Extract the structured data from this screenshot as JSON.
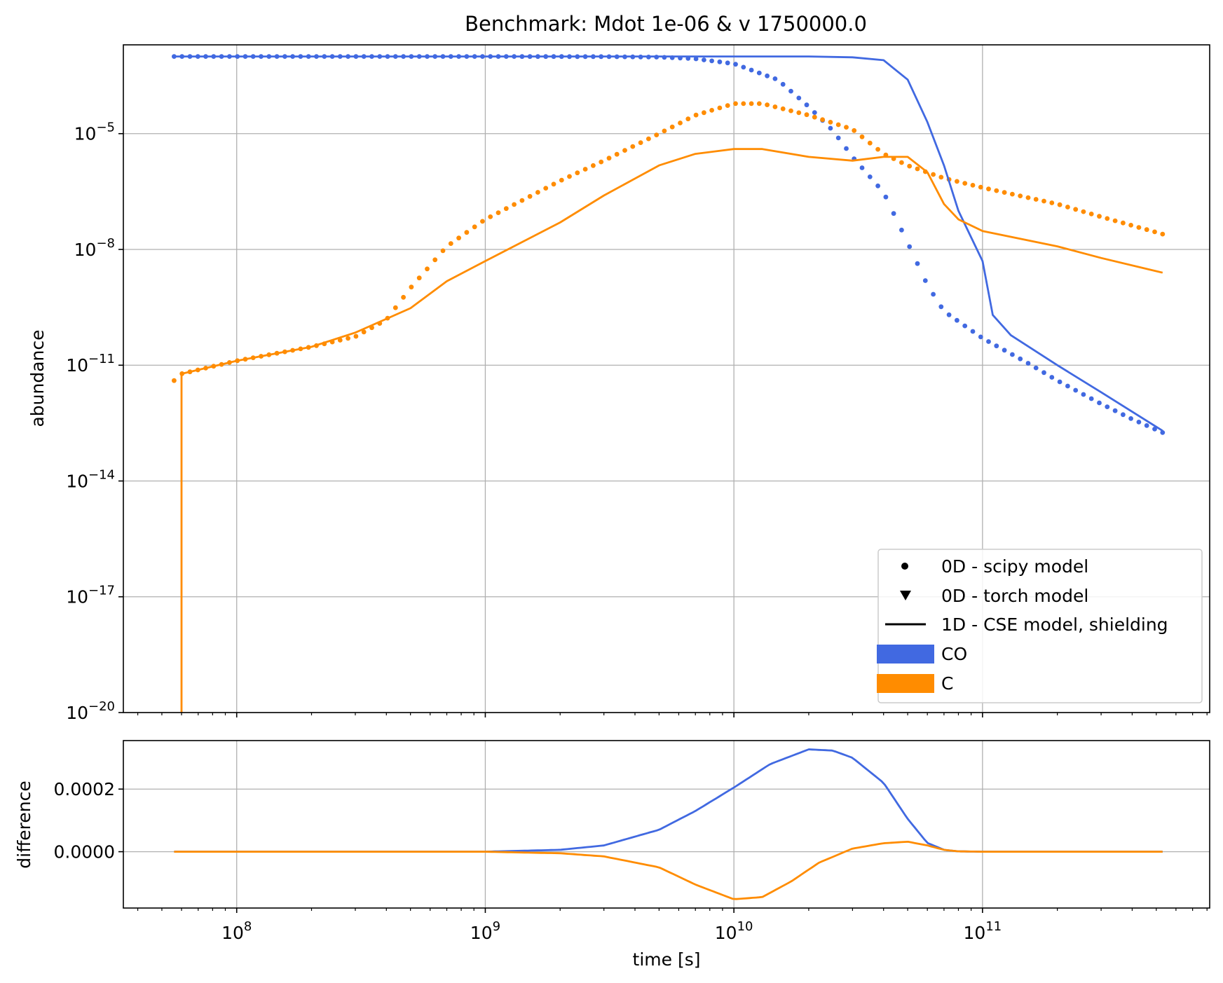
{
  "chart_data": [
    {
      "type": "line",
      "title": "Benchmark: Mdot 1e-06 & v 1750000.0",
      "xlabel": "",
      "ylabel": "abundance",
      "xscale": "log",
      "yscale": "log",
      "xlim": [
        35000000.0,
        820000000000.0
      ],
      "ylim": [
        1e-20,
        0.002
      ],
      "grid": true,
      "yticks": [
        {
          "mant": "10",
          "exp": "−20",
          "value": 1e-20
        },
        {
          "mant": "10",
          "exp": "−17",
          "value": 1e-17
        },
        {
          "mant": "10",
          "exp": "−14",
          "value": 1e-14
        },
        {
          "mant": "10",
          "exp": "−11",
          "value": 1e-11
        },
        {
          "mant": "10",
          "exp": "−8",
          "value": 1e-08
        },
        {
          "mant": "10",
          "exp": "−5",
          "value": 1e-05
        }
      ],
      "xtick_major": [
        100000000.0,
        1000000000.0,
        10000000000.0,
        100000000000.0
      ],
      "legend": {
        "position": "lower right",
        "entries": [
          {
            "label": "0D - scipy model",
            "marker": "dot"
          },
          {
            "label": "0D - torch model",
            "marker": "triangle-down"
          },
          {
            "label": "1D - CSE model, shielding",
            "marker": "line"
          },
          {
            "label": "CO",
            "marker": "patch",
            "color": "#4169E1"
          },
          {
            "label": "C",
            "marker": "patch",
            "color": "#FF8C00"
          }
        ]
      },
      "series": [
        {
          "name": "CO",
          "model": "0D - scipy model",
          "style": "dotted",
          "color": "#4169E1",
          "points": [
            [
              56000000.0,
              0.001
            ],
            [
              100000000.0,
              0.001
            ],
            [
              1000000000.0,
              0.001
            ],
            [
              3000000000.0,
              0.00099
            ],
            [
              5000000000.0,
              0.00096
            ],
            [
              7000000000.0,
              0.00087
            ],
            [
              10000000000.0,
              0.00065
            ],
            [
              15000000000.0,
              0.00025
            ],
            [
              20000000000.0,
              5e-05
            ],
            [
              25000000000.0,
              1.2e-05
            ],
            [
              30000000000.0,
              2.5e-06
            ],
            [
              40000000000.0,
              3e-07
            ],
            [
              50000000000.0,
              1.5e-08
            ],
            [
              60000000000.0,
              1.2e-09
            ],
            [
              70000000000.0,
              2.5e-10
            ],
            [
              100000000000.0,
              5e-11
            ],
            [
              150000000000.0,
              1.2e-11
            ],
            [
              200000000000.0,
              4e-12
            ],
            [
              300000000000.0,
              1e-12
            ],
            [
              400000000000.0,
              4e-13
            ],
            [
              530000000000.0,
              1.8e-13
            ]
          ]
        },
        {
          "name": "C",
          "model": "0D - scipy model",
          "style": "dotted",
          "color": "#FF8C00",
          "points": [
            [
              56000000.0,
              4e-12
            ],
            [
              60000000.0,
              6e-12
            ],
            [
              100000000.0,
              1.3e-11
            ],
            [
              200000000.0,
              3e-11
            ],
            [
              300000000.0,
              5.5e-11
            ],
            [
              400000000.0,
              1.5e-10
            ],
            [
              500000000.0,
              1e-09
            ],
            [
              700000000.0,
              1.2e-08
            ],
            [
              1000000000.0,
              6e-08
            ],
            [
              2000000000.0,
              6e-07
            ],
            [
              3000000000.0,
              2e-06
            ],
            [
              5000000000.0,
              1e-05
            ],
            [
              7000000000.0,
              3e-05
            ],
            [
              10000000000.0,
              6e-05
            ],
            [
              13000000000.0,
              6e-05
            ],
            [
              20000000000.0,
              3e-05
            ],
            [
              30000000000.0,
              1.3e-05
            ],
            [
              40000000000.0,
              3e-06
            ],
            [
              50000000000.0,
              1.5e-06
            ],
            [
              70000000000.0,
              7e-07
            ],
            [
              100000000000.0,
              4e-07
            ],
            [
              200000000000.0,
              1.5e-07
            ],
            [
              300000000000.0,
              7e-08
            ],
            [
              530000000000.0,
              2.5e-08
            ]
          ]
        },
        {
          "name": "CO",
          "model": "1D - CSE model, shielding",
          "style": "solid",
          "color": "#4169E1",
          "points": [
            [
              56000000.0,
              0.001
            ],
            [
              1000000000.0,
              0.001
            ],
            [
              10000000000.0,
              0.001
            ],
            [
              20000000000.0,
              0.001
            ],
            [
              30000000000.0,
              0.00095
            ],
            [
              40000000000.0,
              0.0008
            ],
            [
              50000000000.0,
              0.00025
            ],
            [
              60000000000.0,
              2e-05
            ],
            [
              70000000000.0,
              1.5e-06
            ],
            [
              80000000000.0,
              1e-07
            ],
            [
              100000000000.0,
              5e-09
            ],
            [
              110000000000.0,
              2e-10
            ],
            [
              130000000000.0,
              6e-11
            ],
            [
              200000000000.0,
              1e-11
            ],
            [
              300000000000.0,
              2e-12
            ],
            [
              530000000000.0,
              2e-13
            ]
          ]
        },
        {
          "name": "C",
          "model": "1D - CSE model, shielding",
          "style": "solid",
          "color": "#FF8C00",
          "points": [
            [
              60000000.0,
              1e-20
            ],
            [
              60000000.0,
              6e-12
            ],
            [
              100000000.0,
              1.3e-11
            ],
            [
              200000000.0,
              3e-11
            ],
            [
              300000000.0,
              7e-11
            ],
            [
              500000000.0,
              3e-10
            ],
            [
              700000000.0,
              1.5e-09
            ],
            [
              1000000000.0,
              5e-09
            ],
            [
              2000000000.0,
              5e-08
            ],
            [
              3000000000.0,
              2.5e-07
            ],
            [
              5000000000.0,
              1.5e-06
            ],
            [
              7000000000.0,
              3e-06
            ],
            [
              10000000000.0,
              4e-06
            ],
            [
              13000000000.0,
              4e-06
            ],
            [
              20000000000.0,
              2.5e-06
            ],
            [
              30000000000.0,
              2e-06
            ],
            [
              40000000000.0,
              2.5e-06
            ],
            [
              50000000000.0,
              2.5e-06
            ],
            [
              60000000000.0,
              1e-06
            ],
            [
              70000000000.0,
              1.5e-07
            ],
            [
              80000000000.0,
              6e-08
            ],
            [
              100000000000.0,
              3e-08
            ],
            [
              200000000000.0,
              1.2e-08
            ],
            [
              300000000000.0,
              6e-09
            ],
            [
              530000000000.0,
              2.5e-09
            ]
          ]
        }
      ]
    },
    {
      "type": "line",
      "xlabel": "time [s]",
      "ylabel": "difference",
      "xscale": "log",
      "xlim": [
        35000000.0,
        820000000000.0
      ],
      "ylim": [
        -0.00018,
        0.000355
      ],
      "grid": true,
      "yticks": [
        {
          "label": "0.0002",
          "value": 0.0002
        },
        {
          "label": "0.0000",
          "value": 0.0
        }
      ],
      "xticks": [
        {
          "mant": "10",
          "exp": "8",
          "value": 100000000.0
        },
        {
          "mant": "10",
          "exp": "9",
          "value": 1000000000.0
        },
        {
          "mant": "10",
          "exp": "10",
          "value": 10000000000.0
        },
        {
          "mant": "10",
          "exp": "11",
          "value": 100000000000.0
        }
      ],
      "series": [
        {
          "name": "CO",
          "color": "#4169E1",
          "points": [
            [
              56000000.0,
              0
            ],
            [
              1000000000.0,
              0
            ],
            [
              2000000000.0,
              6e-06
            ],
            [
              3000000000.0,
              2e-05
            ],
            [
              5000000000.0,
              7e-05
            ],
            [
              7000000000.0,
              0.00013
            ],
            [
              10000000000.0,
              0.000205
            ],
            [
              14000000000.0,
              0.00028
            ],
            [
              20000000000.0,
              0.000327
            ],
            [
              25000000000.0,
              0.000323
            ],
            [
              30000000000.0,
              0.0003
            ],
            [
              40000000000.0,
              0.00022
            ],
            [
              50000000000.0,
              0.000105
            ],
            [
              60000000000.0,
              2.8e-05
            ],
            [
              70000000000.0,
              6e-06
            ],
            [
              80000000000.0,
              1e-06
            ],
            [
              100000000000.0,
              0
            ],
            [
              530000000000.0,
              0
            ]
          ]
        },
        {
          "name": "C",
          "color": "#FF8C00",
          "points": [
            [
              56000000.0,
              0
            ],
            [
              1000000000.0,
              0
            ],
            [
              2000000000.0,
              -5e-06
            ],
            [
              3000000000.0,
              -1.5e-05
            ],
            [
              5000000000.0,
              -5e-05
            ],
            [
              7000000000.0,
              -0.000105
            ],
            [
              10000000000.0,
              -0.000152
            ],
            [
              13000000000.0,
              -0.000145
            ],
            [
              17000000000.0,
              -9.5e-05
            ],
            [
              22000000000.0,
              -3.5e-05
            ],
            [
              30000000000.0,
              1e-05
            ],
            [
              40000000000.0,
              2.7e-05
            ],
            [
              50000000000.0,
              3.2e-05
            ],
            [
              60000000000.0,
              2e-05
            ],
            [
              70000000000.0,
              6e-06
            ],
            [
              80000000000.0,
              1e-06
            ],
            [
              100000000000.0,
              0
            ],
            [
              530000000000.0,
              0
            ]
          ]
        }
      ]
    }
  ]
}
